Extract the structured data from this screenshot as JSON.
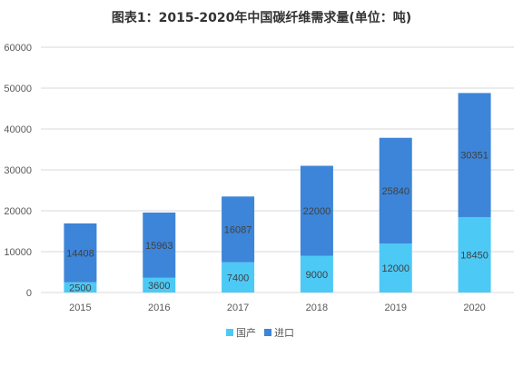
{
  "chart_data": {
    "type": "bar",
    "stacked": true,
    "title": "图表1：2015-2020年中国碳纤维需求量(单位：吨)",
    "categories": [
      "2015",
      "2016",
      "2017",
      "2018",
      "2019",
      "2020"
    ],
    "series": [
      {
        "name": "国产",
        "color": "#4dc9f6",
        "values": [
          2500,
          3600,
          7400,
          9000,
          12000,
          18450
        ]
      },
      {
        "name": "进口",
        "color": "#3d85d8",
        "values": [
          14408,
          15963,
          16087,
          22000,
          25840,
          30351
        ]
      }
    ],
    "ylim": [
      0,
      60000
    ],
    "yticks": [
      "0",
      "10000",
      "20000",
      "30000",
      "40000",
      "50000",
      "60000"
    ],
    "grid": true,
    "legend_position": "bottom"
  }
}
